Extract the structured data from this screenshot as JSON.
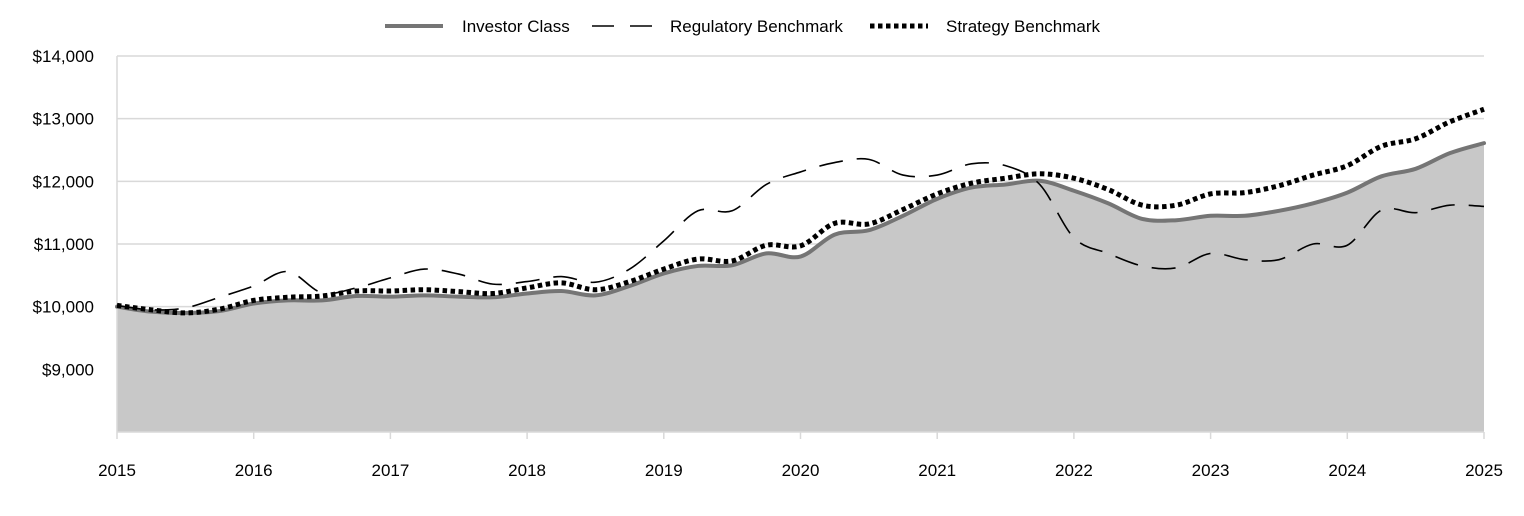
{
  "chart_data": {
    "type": "area",
    "title": "",
    "xlabel": "",
    "ylabel": "",
    "xlim": [
      2015,
      2025
    ],
    "ylim": [
      8000,
      14000
    ],
    "grid": true,
    "legend_position": "top-center",
    "x_ticks": [
      "2015",
      "2016",
      "2017",
      "2018",
      "2019",
      "2020",
      "2021",
      "2022",
      "2023",
      "2024",
      "2025"
    ],
    "y_ticks": [
      {
        "value": 9000,
        "label": "$9,000"
      },
      {
        "value": 10000,
        "label": "$10,000"
      },
      {
        "value": 11000,
        "label": "$11,000"
      },
      {
        "value": 12000,
        "label": "$12,000"
      },
      {
        "value": 13000,
        "label": "$13,000"
      },
      {
        "value": 14000,
        "label": "$14,000"
      }
    ],
    "series": [
      {
        "name": "Investor Class",
        "style": "solid-area",
        "color": "#757575",
        "fill": "#c8c8c8",
        "x": [
          2015.0,
          2015.25,
          2015.5,
          2015.75,
          2016.0,
          2016.25,
          2016.5,
          2016.75,
          2017.0,
          2017.25,
          2017.5,
          2017.75,
          2018.0,
          2018.25,
          2018.5,
          2018.75,
          2019.0,
          2019.25,
          2019.5,
          2019.75,
          2020.0,
          2020.25,
          2020.5,
          2020.75,
          2021.0,
          2021.25,
          2021.5,
          2021.75,
          2022.0,
          2022.25,
          2022.5,
          2022.75,
          2023.0,
          2023.25,
          2023.5,
          2023.75,
          2024.0,
          2024.25,
          2024.5,
          2024.75,
          2025.0
        ],
        "values": [
          10000,
          9920,
          9900,
          9930,
          10050,
          10100,
          10100,
          10170,
          10160,
          10180,
          10160,
          10150,
          10210,
          10250,
          10180,
          10330,
          10530,
          10650,
          10660,
          10850,
          10800,
          11150,
          11220,
          11450,
          11720,
          11900,
          11950,
          12010,
          11850,
          11650,
          11400,
          11380,
          11450,
          11450,
          11530,
          11650,
          11820,
          12080,
          12200,
          12450,
          12610
        ]
      },
      {
        "name": "Regulatory Benchmark",
        "style": "dashed",
        "color": "#000000",
        "x": [
          2015.0,
          2015.25,
          2015.5,
          2015.75,
          2016.0,
          2016.25,
          2016.5,
          2016.75,
          2017.0,
          2017.25,
          2017.5,
          2017.75,
          2018.0,
          2018.25,
          2018.5,
          2018.75,
          2019.0,
          2019.25,
          2019.5,
          2019.75,
          2020.0,
          2020.25,
          2020.5,
          2020.75,
          2021.0,
          2021.25,
          2021.5,
          2021.75,
          2022.0,
          2022.25,
          2022.5,
          2022.75,
          2023.0,
          2023.25,
          2023.5,
          2023.75,
          2024.0,
          2024.25,
          2024.5,
          2024.75,
          2025.0
        ],
        "values": [
          10020,
          9950,
          9980,
          10150,
          10330,
          10560,
          10220,
          10300,
          10460,
          10600,
          10520,
          10360,
          10400,
          10480,
          10390,
          10600,
          11050,
          11530,
          11530,
          11950,
          12150,
          12300,
          12350,
          12100,
          12100,
          12280,
          12250,
          11950,
          11100,
          10850,
          10650,
          10620,
          10850,
          10750,
          10750,
          11000,
          10980,
          11540,
          11500,
          11620,
          11600
        ]
      },
      {
        "name": "Strategy Benchmark",
        "style": "dotted",
        "color": "#000000",
        "x": [
          2015.0,
          2015.25,
          2015.5,
          2015.75,
          2016.0,
          2016.25,
          2016.5,
          2016.75,
          2017.0,
          2017.25,
          2017.5,
          2017.75,
          2018.0,
          2018.25,
          2018.5,
          2018.75,
          2019.0,
          2019.25,
          2019.5,
          2019.75,
          2020.0,
          2020.25,
          2020.5,
          2020.75,
          2021.0,
          2021.25,
          2021.5,
          2021.75,
          2022.0,
          2022.25,
          2022.5,
          2022.75,
          2023.0,
          2023.25,
          2023.5,
          2023.75,
          2024.0,
          2024.25,
          2024.5,
          2024.75,
          2025.0
        ],
        "values": [
          10020,
          9950,
          9900,
          9960,
          10100,
          10150,
          10170,
          10250,
          10250,
          10270,
          10240,
          10210,
          10300,
          10380,
          10270,
          10400,
          10600,
          10760,
          10730,
          10980,
          10970,
          11330,
          11320,
          11550,
          11800,
          11970,
          12050,
          12120,
          12050,
          11870,
          11620,
          11620,
          11800,
          11820,
          11930,
          12100,
          12250,
          12560,
          12680,
          12950,
          13150
        ]
      }
    ]
  }
}
